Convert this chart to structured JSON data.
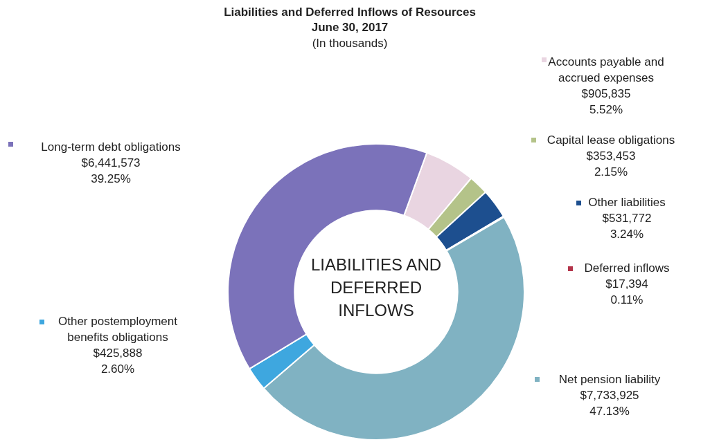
{
  "chart_data": {
    "type": "donut",
    "title": "Liabilities and Deferred Inflows of Resources",
    "subtitle": "June 30, 2017",
    "annotations": [
      "(In thousands)",
      "LIABILITIES AND\nDEFERRED\nINFLOWS"
    ],
    "categories": [
      "Accounts payable and accrued expenses",
      "Capital lease obligations",
      "Other liabilities",
      "Deferred inflows",
      "Net pension liability",
      "Other postemployment benefits obligations",
      "Long-term debt obligations"
    ],
    "values": [
      905835,
      353453,
      531772,
      17394,
      7733925,
      425888,
      6441573
    ],
    "value_labels": [
      "$905,835\n5.52%",
      "$353,453\n2.15%",
      "$531,772\n3.24%",
      "$17,394\n0.11%",
      "$7,733,925\n47.13%",
      "$425,888\n2.60%",
      "$6,441,573\n39.25%"
    ],
    "legend": "top left",
    "colors": [
      "#e9d5e1",
      "#b4c389",
      "#1d4f8f",
      "#b3344a",
      "#80b2c2",
      "#3ea7df",
      "#7b72ba"
    ]
  }
}
